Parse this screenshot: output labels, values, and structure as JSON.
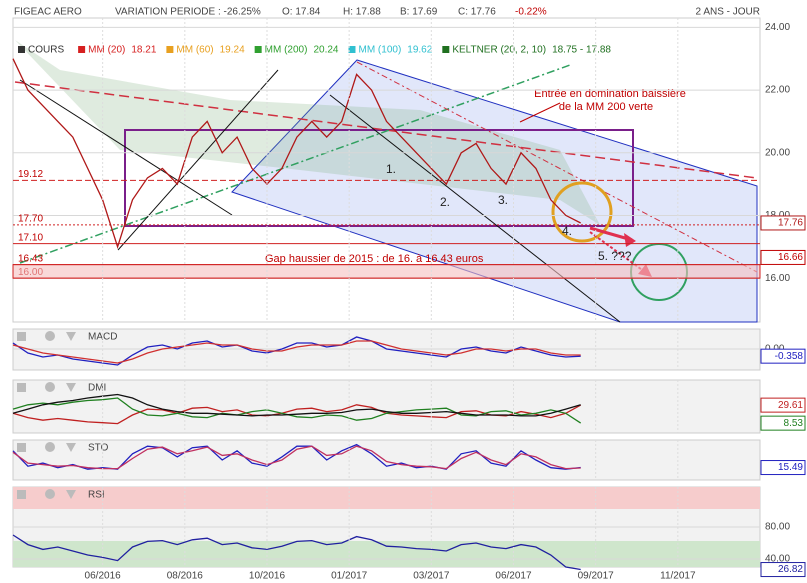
{
  "header": {
    "symbol": "FIGEAC AERO",
    "variation": "VARIATION PERIODE : -26.25%",
    "open": "O: 17.84",
    "high": "H: 17.88",
    "low": "B: 17.69",
    "close": "C: 17.76",
    "change": "-0.22%",
    "period": "2 ANS - JOUR"
  },
  "legend": [
    {
      "name": "COURS",
      "color": "#333333"
    },
    {
      "name": "MM (20)",
      "value": 18.21,
      "color": "#d62020"
    },
    {
      "name": "MM (60)",
      "value": 19.24,
      "color": "#e8a020"
    },
    {
      "name": "MM (200)",
      "value": 20.24,
      "color": "#30a030"
    },
    {
      "name": "MM (100)",
      "value": 19.62,
      "color": "#30c0d0"
    },
    {
      "name": "KELTNER (20, 2, 10)",
      "value": "18.75 - 17.88",
      "color": "#207020"
    }
  ],
  "chart_data": [
    {
      "type": "line",
      "x": [
        0,
        2,
        4,
        6,
        8,
        10,
        12,
        14,
        16,
        18,
        20,
        22,
        24,
        26,
        28,
        30,
        32,
        34,
        36,
        38,
        40,
        42,
        44,
        46,
        48,
        50,
        52,
        54,
        56,
        58,
        60,
        62,
        64,
        66,
        68,
        70,
        72,
        74,
        76
      ],
      "xlim": [
        0,
        100
      ],
      "ylim": [
        14.6,
        24.3
      ],
      "yticks": [
        {
          "value": 16,
          "label": "16.00"
        },
        {
          "value": 18,
          "label": "18.00"
        },
        {
          "value": 20,
          "label": "20.00"
        },
        {
          "value": 22,
          "label": "22.00"
        },
        {
          "value": 24,
          "label": "24.00"
        }
      ],
      "series": [
        {
          "color": "#b01818",
          "value_tag": true,
          "values": [
            23,
            22,
            21.5,
            21,
            20.5,
            19.5,
            18.5,
            17,
            18.5,
            19.2,
            19.5,
            19,
            20.5,
            21,
            20,
            20.5,
            19.5,
            19,
            19.5,
            20.5,
            21,
            20.5,
            21,
            22.5,
            22,
            21,
            20.5,
            20,
            19.5,
            19,
            20,
            20.3,
            19.5,
            19,
            20,
            19.5,
            18.5,
            18,
            17.76
          ]
        }
      ],
      "levels": [
        {
          "value": 19.12,
          "label": "19.12"
        },
        {
          "value": 17.7,
          "label": "17.70"
        },
        {
          "value": 17.1,
          "label": "17.10"
        },
        {
          "value": 16.43,
          "label": "16.43"
        },
        {
          "value": 16,
          "label": "16.00"
        }
      ],
      "marker_value": 16.66,
      "annotations": [
        "Entrée en domination baissière",
        "de la MM 200 verte",
        "1.",
        "2.",
        "3.",
        "4.",
        "5. ???",
        "Gap haussier de 2015 : de 16. à 16.43 euros"
      ]
    },
    {
      "type": "line",
      "title": "MACD",
      "x": [
        0,
        2,
        4,
        6,
        8,
        10,
        12,
        14,
        16,
        18,
        20,
        22,
        24,
        26,
        28,
        30,
        32,
        34,
        36,
        38,
        40,
        42,
        44,
        46,
        48,
        50,
        52,
        54,
        56,
        58,
        60,
        62,
        64,
        66,
        68,
        70,
        72,
        74,
        76
      ],
      "xlim": [
        0,
        100
      ],
      "ylim": [
        -1.05,
        1
      ],
      "yticks": [
        {
          "value": 0,
          "label": "0.00"
        }
      ],
      "series": [
        {
          "color": "#2020c0",
          "value_tag": true,
          "values": [
            0.3,
            -0.2,
            -0.4,
            -0.3,
            -0.5,
            -0.6,
            -0.7,
            -0.8,
            -0.3,
            0.1,
            0.2,
            0,
            0.3,
            0.4,
            0.1,
            0.2,
            -0.1,
            -0.2,
            0,
            0.3,
            0.3,
            0.1,
            0.2,
            0.6,
            0.4,
            0,
            -0.1,
            -0.2,
            -0.3,
            -0.4,
            0,
            0.1,
            -0.1,
            -0.2,
            0.1,
            -0.1,
            -0.3,
            -0.4,
            -0.358
          ]
        },
        {
          "color": "#d03030",
          "values": [
            0.2,
            0,
            -0.2,
            -0.3,
            -0.4,
            -0.5,
            -0.6,
            -0.7,
            -0.5,
            -0.2,
            0,
            0.1,
            0.2,
            0.3,
            0.2,
            0.2,
            0,
            -0.1,
            -0.1,
            0.1,
            0.2,
            0.2,
            0.2,
            0.4,
            0.4,
            0.2,
            0,
            -0.1,
            -0.2,
            -0.3,
            -0.2,
            0,
            0,
            -0.1,
            0,
            0,
            -0.2,
            -0.3,
            -0.3
          ]
        }
      ]
    },
    {
      "type": "line",
      "title": "DMI",
      "x": [
        0,
        2,
        4,
        6,
        8,
        10,
        12,
        14,
        16,
        18,
        20,
        22,
        24,
        26,
        28,
        30,
        32,
        34,
        36,
        38,
        40,
        42,
        44,
        46,
        48,
        50,
        52,
        54,
        56,
        58,
        60,
        62,
        64,
        66,
        68,
        70,
        72,
        74,
        76
      ],
      "xlim": [
        0,
        100
      ],
      "ylim": [
        -3,
        59
      ],
      "yticks": [],
      "series": [
        {
          "color": "#c02020",
          "value_tag": true,
          "values": [
            20,
            15,
            12,
            14,
            12,
            10,
            9,
            8,
            18,
            25,
            24,
            20,
            26,
            27,
            22,
            24,
            18,
            17,
            20,
            25,
            26,
            22,
            24,
            30,
            27,
            20,
            18,
            17,
            16,
            15,
            22,
            23,
            18,
            17,
            22,
            19,
            15,
            20,
            29.61
          ]
        },
        {
          "color": "#208020",
          "value_tag": true,
          "values": [
            25,
            30,
            32,
            30,
            33,
            35,
            36,
            38,
            25,
            18,
            17,
            20,
            16,
            15,
            20,
            18,
            22,
            24,
            20,
            16,
            15,
            18,
            17,
            12,
            14,
            20,
            22,
            24,
            25,
            26,
            18,
            17,
            22,
            23,
            18,
            20,
            24,
            20,
            8.53
          ]
        },
        {
          "color": "#111111",
          "values": [
            20,
            25,
            30,
            33,
            35,
            38,
            40,
            42,
            38,
            30,
            25,
            22,
            20,
            20,
            19,
            18,
            17,
            18,
            18,
            19,
            20,
            20,
            21,
            24,
            25,
            22,
            20,
            20,
            21,
            22,
            20,
            18,
            18,
            18,
            17,
            17,
            20,
            25,
            30
          ]
        }
      ]
    },
    {
      "type": "line",
      "title": "STO",
      "x": [
        0,
        2,
        4,
        6,
        8,
        10,
        12,
        14,
        16,
        18,
        20,
        22,
        24,
        26,
        28,
        30,
        32,
        34,
        36,
        38,
        40,
        42,
        44,
        46,
        48,
        50,
        52,
        54,
        56,
        58,
        60,
        62,
        64,
        66,
        68,
        70,
        72,
        74,
        76
      ],
      "xlim": [
        0,
        100
      ],
      "ylim": [
        -25,
        105
      ],
      "yticks": [],
      "series": [
        {
          "color": "#2020c0",
          "value_tag": true,
          "values": [
            70,
            20,
            30,
            15,
            25,
            10,
            15,
            10,
            60,
            85,
            80,
            50,
            80,
            85,
            40,
            70,
            30,
            20,
            50,
            85,
            85,
            40,
            70,
            90,
            60,
            20,
            30,
            15,
            20,
            10,
            60,
            70,
            30,
            20,
            70,
            40,
            15,
            10,
            15.49
          ]
        },
        {
          "color": "#c03060",
          "values": [
            65,
            30,
            25,
            20,
            22,
            15,
            12,
            12,
            45,
            75,
            82,
            60,
            70,
            82,
            55,
            60,
            40,
            25,
            40,
            75,
            85,
            55,
            60,
            85,
            70,
            35,
            25,
            20,
            18,
            12,
            45,
            65,
            40,
            25,
            60,
            50,
            25,
            12,
            14
          ]
        }
      ]
    },
    {
      "type": "line",
      "title": "RSI",
      "x": [
        0,
        2,
        4,
        6,
        8,
        10,
        12,
        14,
        16,
        18,
        20,
        22,
        24,
        26,
        28,
        30,
        32,
        34,
        36,
        38,
        40,
        42,
        44,
        46,
        48,
        50,
        52,
        54,
        56,
        58,
        60,
        62,
        64,
        66,
        68,
        70,
        72,
        74,
        76
      ],
      "xlim": [
        0,
        100
      ],
      "ylim": [
        30,
        130
      ],
      "yticks": [
        {
          "value": 40,
          "label": "40.00"
        },
        {
          "value": 80,
          "label": "80.00"
        }
      ],
      "xticks": [
        {
          "value": 12,
          "label": "06/2016"
        },
        {
          "value": 23,
          "label": "08/2016"
        },
        {
          "value": 34,
          "label": "10/2016"
        },
        {
          "value": 45,
          "label": "01/2017"
        },
        {
          "value": 56,
          "label": "03/2017"
        },
        {
          "value": 67,
          "label": "06/2017"
        },
        {
          "value": 78,
          "label": "09/2017"
        },
        {
          "value": 89,
          "label": "11/2017"
        }
      ],
      "series": [
        {
          "color": "#2020a0",
          "value_tag": true,
          "values": [
            70,
            58,
            52,
            55,
            50,
            45,
            42,
            38,
            55,
            62,
            63,
            58,
            64,
            66,
            58,
            60,
            54,
            52,
            56,
            62,
            63,
            58,
            60,
            68,
            64,
            56,
            55,
            53,
            52,
            50,
            58,
            60,
            55,
            53,
            58,
            55,
            45,
            30,
            26.82
          ]
        }
      ]
    }
  ]
}
